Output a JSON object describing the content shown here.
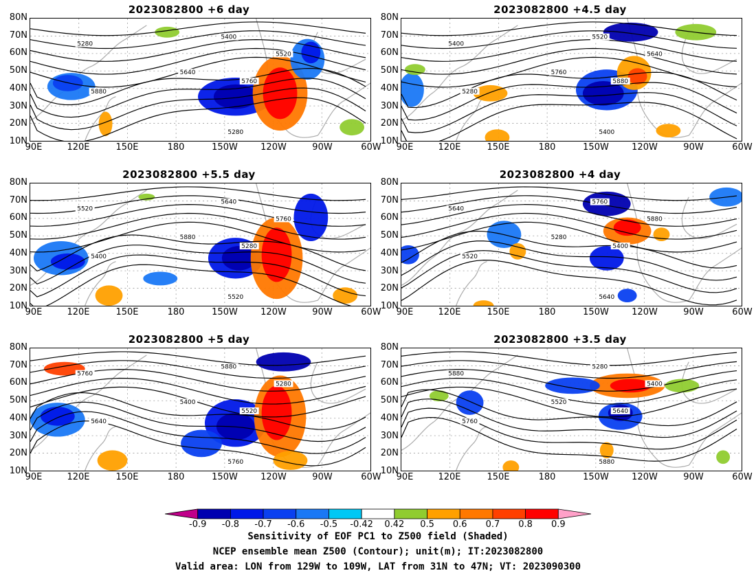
{
  "panels": [
    {
      "title": "2023082800 +6 day",
      "variant": 0
    },
    {
      "title": "2023082800 +4.5 day",
      "variant": 1
    },
    {
      "title": "2023082800 +5.5 day",
      "variant": 2
    },
    {
      "title": "2023082800 +4 day",
      "variant": 3
    },
    {
      "title": "2023082800 +5 day",
      "variant": 4
    },
    {
      "title": "2023082800 +3.5 day",
      "variant": 5
    }
  ],
  "lat_labels": [
    "80N",
    "70N",
    "60N",
    "50N",
    "40N",
    "30N",
    "20N",
    "10N"
  ],
  "lon_labels": [
    "90E",
    "120E",
    "150E",
    "180",
    "150W",
    "120W",
    "90W",
    "60W"
  ],
  "contour_labels": [
    "5280",
    "5400",
    "5520",
    "5640",
    "5760",
    "5880"
  ],
  "colorbar": {
    "labels": [
      "-0.9",
      "-0.8",
      "-0.7",
      "-0.6",
      "-0.5",
      "-0.42",
      "0.42",
      "0.5",
      "0.6",
      "0.7",
      "0.8",
      "0.9"
    ],
    "colors": [
      "#c0008a",
      "#0000b0",
      "#0018e8",
      "#0a40f0",
      "#1a78f5",
      "#00c8f5",
      "#ffffff",
      "#90cc30",
      "#ffa000",
      "#ff7800",
      "#ff4000",
      "#ff0000",
      "#ffa0c8"
    ]
  },
  "caption": {
    "line1": "Sensitivity of EOF PC1 to Z500 field (Shaded)",
    "line2": "NCEP ensemble mean Z500 (Contour); unit(m); IT:2023082800",
    "line3": "Valid area: LON from 129W to 109W, LAT from 31N to 47N; VT: 2023090300"
  }
}
